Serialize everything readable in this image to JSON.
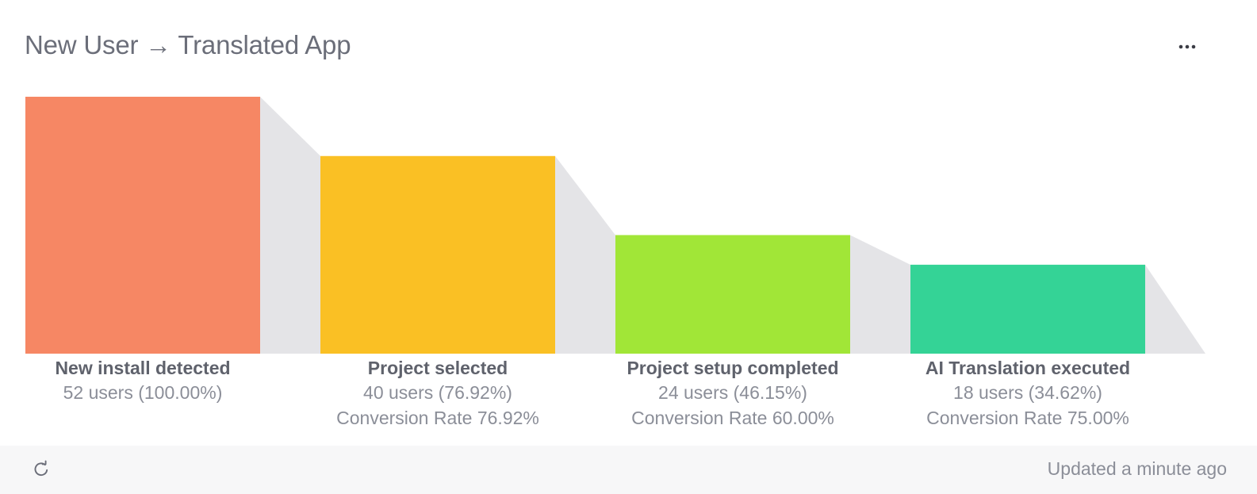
{
  "card": {
    "title": "New User → Translated App",
    "menu_icon": "more-horizontal-icon"
  },
  "footer": {
    "refresh_icon": "refresh-icon",
    "updated_text": "Updated a minute ago"
  },
  "chart_data": {
    "type": "bar",
    "subtype": "funnel",
    "categories": [
      "New install detected",
      "Project selected",
      "Project setup completed",
      "AI Translation executed"
    ],
    "values": [
      52,
      40,
      24,
      18
    ],
    "colors": [
      "#f68764",
      "#fac024",
      "#a1e637",
      "#34d396"
    ],
    "connector_color": "#e4e4e7",
    "count_labels": [
      "52 users (100.00%)",
      "40 users (76.92%)",
      "24 users (46.15%)",
      "18 users (34.62%)"
    ],
    "conversion_labels": [
      "",
      "Conversion Rate 76.92%",
      "Conversion Rate 60.00%",
      "Conversion Rate 75.00%"
    ],
    "ylim": [
      0,
      52
    ],
    "grid": false
  }
}
